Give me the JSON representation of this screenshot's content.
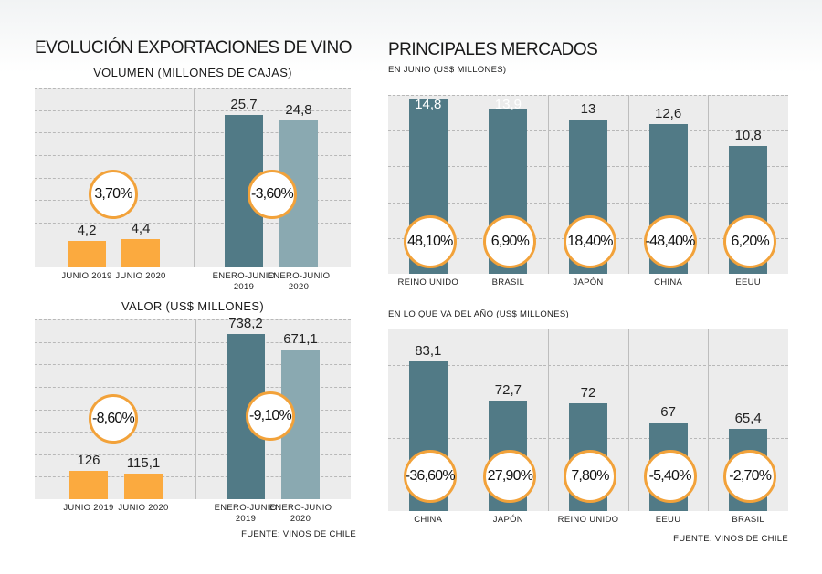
{
  "titles": {
    "left_main": "EVOLUCIÓN EXPORTACIONES DE VINO",
    "volume": "VOLUMEN (MILLONES DE CAJAS)",
    "value": "VALOR (US$ MILLONES)",
    "right_main": "PRINCIPALES MERCADOS",
    "june": "EN JUNIO (US$ MILLONES)",
    "ytd": "EN LO QUE VA DEL AÑO (US$ MILLONES)"
  },
  "sources": {
    "left": "FUENTE: VINOS DE CHILE",
    "right": "FUENTE: VINOS DE CHILE"
  },
  "colors": {
    "orange": "#fbaa3f",
    "dark_teal": "#517a86",
    "light_teal": "#8aa9b1",
    "circle_border": "#f2a23a",
    "panel": "#ececec"
  },
  "chart_data": [
    {
      "type": "bar",
      "title": "VOLUMEN (MILLONES DE CAJAS)",
      "groups": [
        {
          "categories": [
            "JUNIO 2019",
            "JUNIO 2020"
          ],
          "values": [
            4.2,
            4.4
          ],
          "value_labels": [
            "4,2",
            "4,4"
          ],
          "change": "3,70%"
        },
        {
          "categories": [
            "ENERO-JUNIO 2019",
            "ENERO-JUNIO 2020"
          ],
          "values": [
            25.7,
            24.8
          ],
          "value_labels": [
            "25,7",
            "24,8"
          ],
          "change": "-3,60%"
        }
      ]
    },
    {
      "type": "bar",
      "title": "VALOR (US$ MILLONES)",
      "groups": [
        {
          "categories": [
            "JUNIO 2019",
            "JUNIO 2020"
          ],
          "values": [
            126,
            115.1
          ],
          "value_labels": [
            "126",
            "115,1"
          ],
          "change": "-8,60%"
        },
        {
          "categories": [
            "ENERO-JUNIO 2019",
            "ENERO-JUNIO 2020"
          ],
          "values": [
            738.2,
            671.1
          ],
          "value_labels": [
            "738,2",
            "671,1"
          ],
          "change": "-9,10%"
        }
      ]
    },
    {
      "type": "bar",
      "title": "EN JUNIO (US$ MILLONES)",
      "categories": [
        "REINO UNIDO",
        "BRASIL",
        "JAPÓN",
        "CHINA",
        "EEUU"
      ],
      "values": [
        14.8,
        13.9,
        13,
        12.6,
        10.8
      ],
      "value_labels": [
        "14,8",
        "13,9",
        "13",
        "12,6",
        "10,8"
      ],
      "changes": [
        "48,10%",
        "6,90%",
        "18,40%",
        "-48,40%",
        "6,20%"
      ]
    },
    {
      "type": "bar",
      "title": "EN LO QUE VA DEL AÑO (US$ MILLONES)",
      "categories": [
        "CHINA",
        "JAPÓN",
        "REINO UNIDO",
        "EEUU",
        "BRASIL"
      ],
      "values": [
        83.1,
        72.7,
        72,
        67,
        65.4
      ],
      "value_labels": [
        "83,1",
        "72,7",
        "72",
        "67",
        "65,4"
      ],
      "changes": [
        "-36,60%",
        "27,90%",
        "7,80%",
        "-5,40%",
        "-2,70%"
      ]
    }
  ]
}
